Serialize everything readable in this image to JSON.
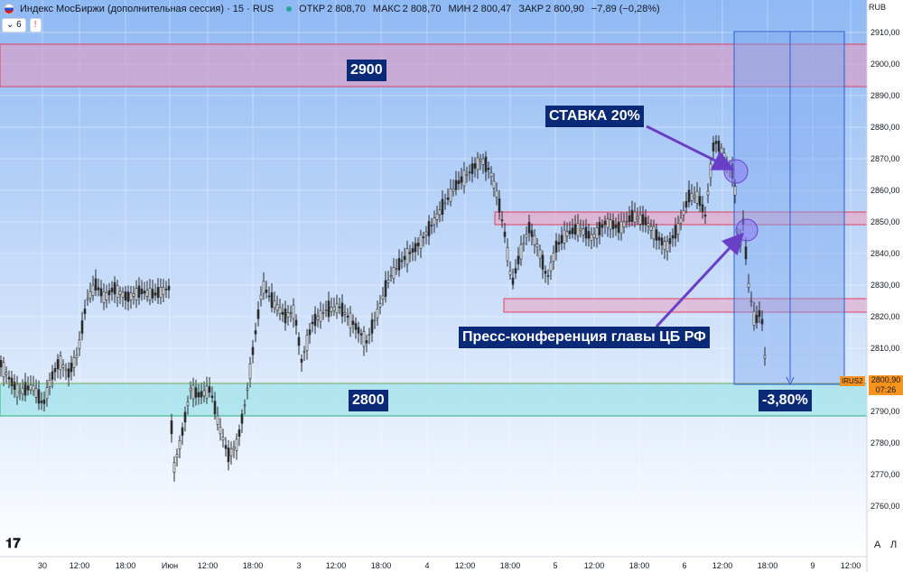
{
  "header": {
    "title": "Индекс МосБиржи (дополнительная сессия) · 15 · RUS",
    "open_label": "ОТКР",
    "open_value": "2 808,70",
    "high_label": "МАКС",
    "high_value": "2 808,70",
    "low_label": "МИН",
    "low_value": "2 800,47",
    "close_label": "ЗАКР",
    "close_value": "2 800,90",
    "change": "−7,89 (−0,28%)",
    "indicator_count": "6",
    "alert_mark": "!"
  },
  "currency": "RUB",
  "price_axis": [
    "2910,00",
    "2900,00",
    "2890,00",
    "2880,00",
    "2870,00",
    "2860,00",
    "2850,00",
    "2840,00",
    "2830,00",
    "2820,00",
    "2810,00",
    "2800,00",
    "2790,00",
    "2780,00",
    "2770,00",
    "2760,00"
  ],
  "time_axis": [
    "30",
    "12:00",
    "18:00",
    "Июн",
    "12:00",
    "18:00",
    "3",
    "12:00",
    "18:00",
    "4",
    "12:00",
    "18:00",
    "5",
    "12:00",
    "18:00",
    "6",
    "12:00",
    "18:00",
    "9",
    "12:00"
  ],
  "current": {
    "ticker": "IRUS2",
    "price": "2800,90",
    "countdown": "07:26"
  },
  "annotations": {
    "level_top": "2900",
    "level_bottom": "2800",
    "rate": "СТАВКА 20%",
    "press": "Пресс-конференция главы ЦБ РФ",
    "drop": "-3,80%"
  },
  "controls": {
    "auto": "A",
    "log": "Л"
  },
  "colors": {
    "resistance_zone": "#d9a0c8",
    "support_zone": "#a8e4ec",
    "measure_box": "#7aa6f0",
    "annotation_bg": "#0a2a78",
    "candle_body": "#2b2b2b",
    "badge": "#f7941d"
  }
}
